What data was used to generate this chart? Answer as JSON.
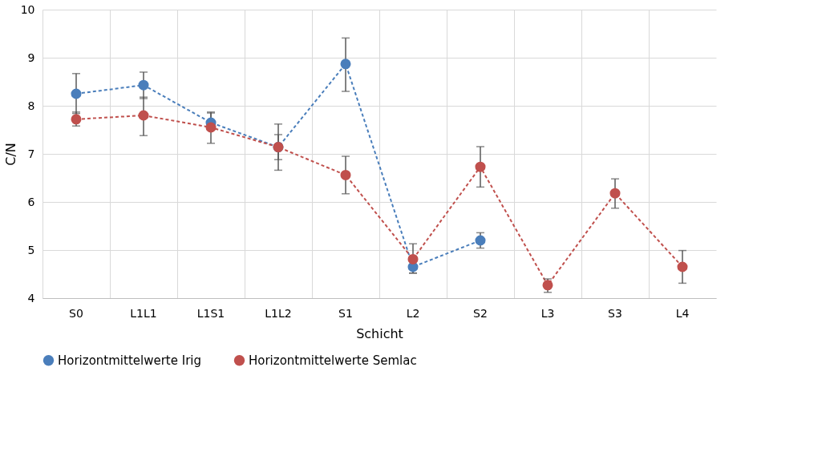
{
  "chart_data": {
    "type": "line",
    "xlabel": "Schicht",
    "ylabel": "C/N",
    "categories": [
      "S0",
      "L1L1",
      "L1S1",
      "L1L2",
      "S1",
      "L2",
      "S2",
      "L3",
      "S3",
      "L4"
    ],
    "series": [
      {
        "name": "Horizontmittelwerte Irig",
        "color": "#4a7ebb",
        "values": [
          8.25,
          8.43,
          7.65,
          7.14,
          8.87,
          4.65,
          5.2,
          null,
          null,
          null
        ],
        "errors": [
          [
            7.84,
            8.67
          ],
          [
            8.15,
            8.7
          ],
          [
            7.65,
            7.87
          ],
          [
            6.88,
            7.4
          ],
          [
            8.3,
            9.41
          ],
          [
            4.52,
            4.65
          ],
          [
            5.04,
            5.36
          ],
          null,
          null,
          null
        ]
      },
      {
        "name": "Horizontmittelwerte Semlac",
        "color": "#c0504d",
        "values": [
          7.72,
          7.8,
          7.55,
          7.14,
          6.56,
          4.81,
          6.73,
          4.27,
          6.18,
          4.65
        ],
        "errors": [
          [
            7.58,
            7.87
          ],
          [
            7.38,
            8.18
          ],
          [
            7.22,
            7.85
          ],
          [
            6.66,
            7.62
          ],
          [
            6.17,
            6.95
          ],
          [
            4.52,
            5.13
          ],
          [
            6.31,
            7.15
          ],
          [
            4.12,
            4.4
          ],
          [
            5.87,
            6.48
          ],
          [
            4.31,
            4.99
          ]
        ]
      }
    ],
    "ylim": [
      4,
      10
    ],
    "yticks": [
      4,
      5,
      6,
      7,
      8,
      9,
      10
    ],
    "grid": true,
    "legend": "bottom",
    "marker": "circle",
    "line_style": "dashed"
  }
}
